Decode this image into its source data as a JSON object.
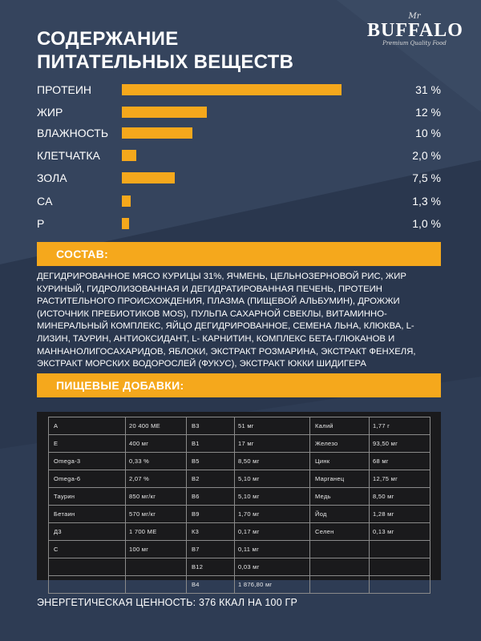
{
  "title_line1": "СОДЕРЖАНИЕ",
  "title_line2": "ПИТАТЕЛЬНЫХ ВЕЩЕСТВ",
  "logo": {
    "mr": "Mr",
    "name": "BUFFALO",
    "tagline": "Premium Quality Food"
  },
  "colors": {
    "background": "#2f3d55",
    "accent": "#f5a81c",
    "table_bg": "#1a1a1c"
  },
  "nutrients": [
    {
      "label": "ПРОТЕИН",
      "value": "31 %",
      "level": 31
    },
    {
      "label": "ЖИР",
      "value": "12 %",
      "level": 12
    },
    {
      "label": "ВЛАЖНОСТЬ",
      "value": "10 %",
      "level": 10
    },
    {
      "label": "КЛЕТЧАТКА",
      "value": "2,0 %",
      "level": 2.0
    },
    {
      "label": "ЗОЛА",
      "value": "7,5 %",
      "level": 7.5
    },
    {
      "label": "CA",
      "value": "1,3 %",
      "level": 1.3
    },
    {
      "label": "P",
      "value": "1,0 %",
      "level": 1.0
    }
  ],
  "composition_heading": "СОСТАВ:",
  "composition_text": "ДЕГИДРИРОВАННОЕ МЯСО КУРИЦЫ 31%, ЯЧМЕНЬ, ЦЕЛЬНОЗЕРНОВОЙ РИС, ЖИР КУРИНЫЙ, ГИДРОЛИЗОВАННАЯ И ДЕГИДРАТИРОВАННАЯ ПЕЧЕНЬ, ПРОТЕИН РАСТИТЕЛЬНОГО ПРОИСХОЖДЕНИЯ, ПЛАЗМА (ПИЩЕВОЙ АЛЬБУМИН), ДРОЖЖИ (ИСТОЧНИК ПРЕБИОТИКОВ MOS), ПУЛЬПА САХАРНОЙ СВЕКЛЫ, ВИТАМИННО-МИНЕРАЛЬНЫЙ КОМПЛЕКС, ЯЙЦО ДЕГИДРИРОВАННОЕ, СЕМЕНА ЛЬНА, КЛЮКВА, L-ЛИЗИН, ТАУРИН, АНТИОКСИДАНТ, L- КАРНИТИН, КОМПЛЕКС БЕТА-ГЛЮКАНОВ И МАННАНОЛИГОСАХАРИДОВ, ЯБЛОКИ, ЭКСТРАКТ РОЗМАРИНА, ЭКСТРАКТ ФЕНХЕЛЯ, ЭКСТРАКТ МОРСКИХ ВОДОРОСЛЕЙ (ФУКУС), ЭКСТРАКТ ЮККИ ШИДИГЕРА",
  "supplements_heading": "ПИЩЕВЫЕ ДОБАВКИ:",
  "supplements": [
    [
      "A",
      "20 400 МЕ",
      "B3",
      "51 мг",
      "Калий",
      "1,77 г"
    ],
    [
      "E",
      "400 мг",
      "B1",
      "17 мг",
      "Железо",
      "93,50 мг"
    ],
    [
      "Omega-3",
      "0,33 %",
      "B5",
      "8,50 мг",
      "Цинк",
      "68 мг"
    ],
    [
      "Omega-6",
      "2,07 %",
      "B2",
      "5,10 мг",
      "Марганец",
      "12,75 мг"
    ],
    [
      "Таурин",
      "850 мг/кг",
      "B6",
      "5,10 мг",
      "Медь",
      "8,50 мг"
    ],
    [
      "Бетаин",
      "570 мг/кг",
      "B9",
      "1,70 мг",
      "Йод",
      "1,28 мг"
    ],
    [
      "Д3",
      "1 700 МЕ",
      "К3",
      "0,17 мг",
      "Селен",
      "0,13 мг"
    ],
    [
      "C",
      "100 мг",
      "B7",
      "0,11 мг",
      "",
      ""
    ],
    [
      "",
      "",
      "B12",
      "0,03 мг",
      "",
      ""
    ],
    [
      "",
      "",
      "B4",
      "1 876,80 мг",
      "",
      ""
    ]
  ],
  "energy": "ЭНЕРГЕТИЧЕСКАЯ ЦЕННОСТЬ: 376 ККАЛ НА 100 ГР"
}
